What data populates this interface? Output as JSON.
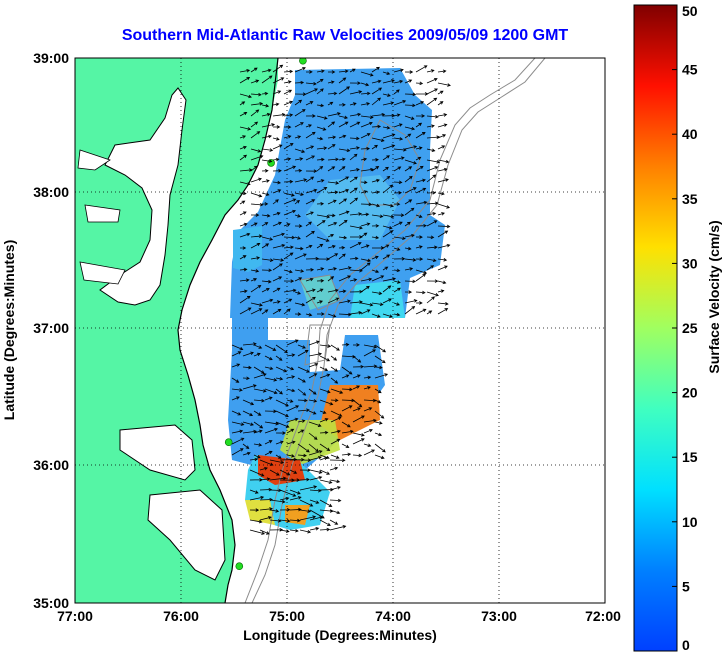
{
  "title": "Southern Mid-Atlantic Raw Velocities 2009/05/09 1200 GMT",
  "map": {
    "x_label": "Longitude (Degrees:Minutes)",
    "y_label": "Latitude (Degrees:Minutes)",
    "x_ticks": [
      "77:00",
      "76:00",
      "75:00",
      "74:00",
      "73:00",
      "72:00"
    ],
    "y_ticks": [
      "39:00",
      "38:00",
      "37:00",
      "36:00",
      "35:00"
    ],
    "lon_range": [
      -77,
      -72
    ],
    "lat_range": [
      35,
      39
    ],
    "grid": "dotted",
    "land_color": "#55f5a5",
    "coastline_color": "#000000",
    "bathymetry_color": "#8c8c8c",
    "station_color": "#22dd22"
  },
  "colorbar": {
    "label": "Surface Velocity (cm/s)",
    "range": [
      0,
      50
    ],
    "ticks": [
      "0",
      "5",
      "10",
      "15",
      "20",
      "25",
      "30",
      "35",
      "40",
      "45",
      "50"
    ],
    "colormap": "jet"
  },
  "stations": [
    {
      "lon": -74.85,
      "lat": 38.98
    },
    {
      "lon": -75.15,
      "lat": 38.23
    },
    {
      "lon": -75.55,
      "lat": 36.18
    },
    {
      "lon": -75.45,
      "lat": 35.27
    }
  ],
  "chart_data": {
    "type": "heatmap",
    "variable": "Surface Velocity (cm/s)",
    "regions": [
      {
        "name": "northern patch",
        "lon": [
          -75.5,
          -73.4
        ],
        "lat": [
          37.05,
          38.95
        ],
        "speed_cm_s": [
          5,
          13
        ]
      },
      {
        "name": "northern nearshore band",
        "lon": [
          -75.4,
          -75.0
        ],
        "lat": [
          37.2,
          37.9
        ],
        "speed_cm_s": [
          8,
          12
        ]
      },
      {
        "name": "central patch",
        "lon": [
          -75.6,
          -74.2
        ],
        "lat": [
          36.0,
          36.9
        ],
        "speed_cm_s": [
          7,
          40
        ]
      },
      {
        "name": "southern patch",
        "lon": [
          -75.6,
          -74.6
        ],
        "lat": [
          35.5,
          36.05
        ],
        "speed_cm_s": [
          10,
          38
        ]
      }
    ],
    "max_speed_cm_s": 40
  }
}
